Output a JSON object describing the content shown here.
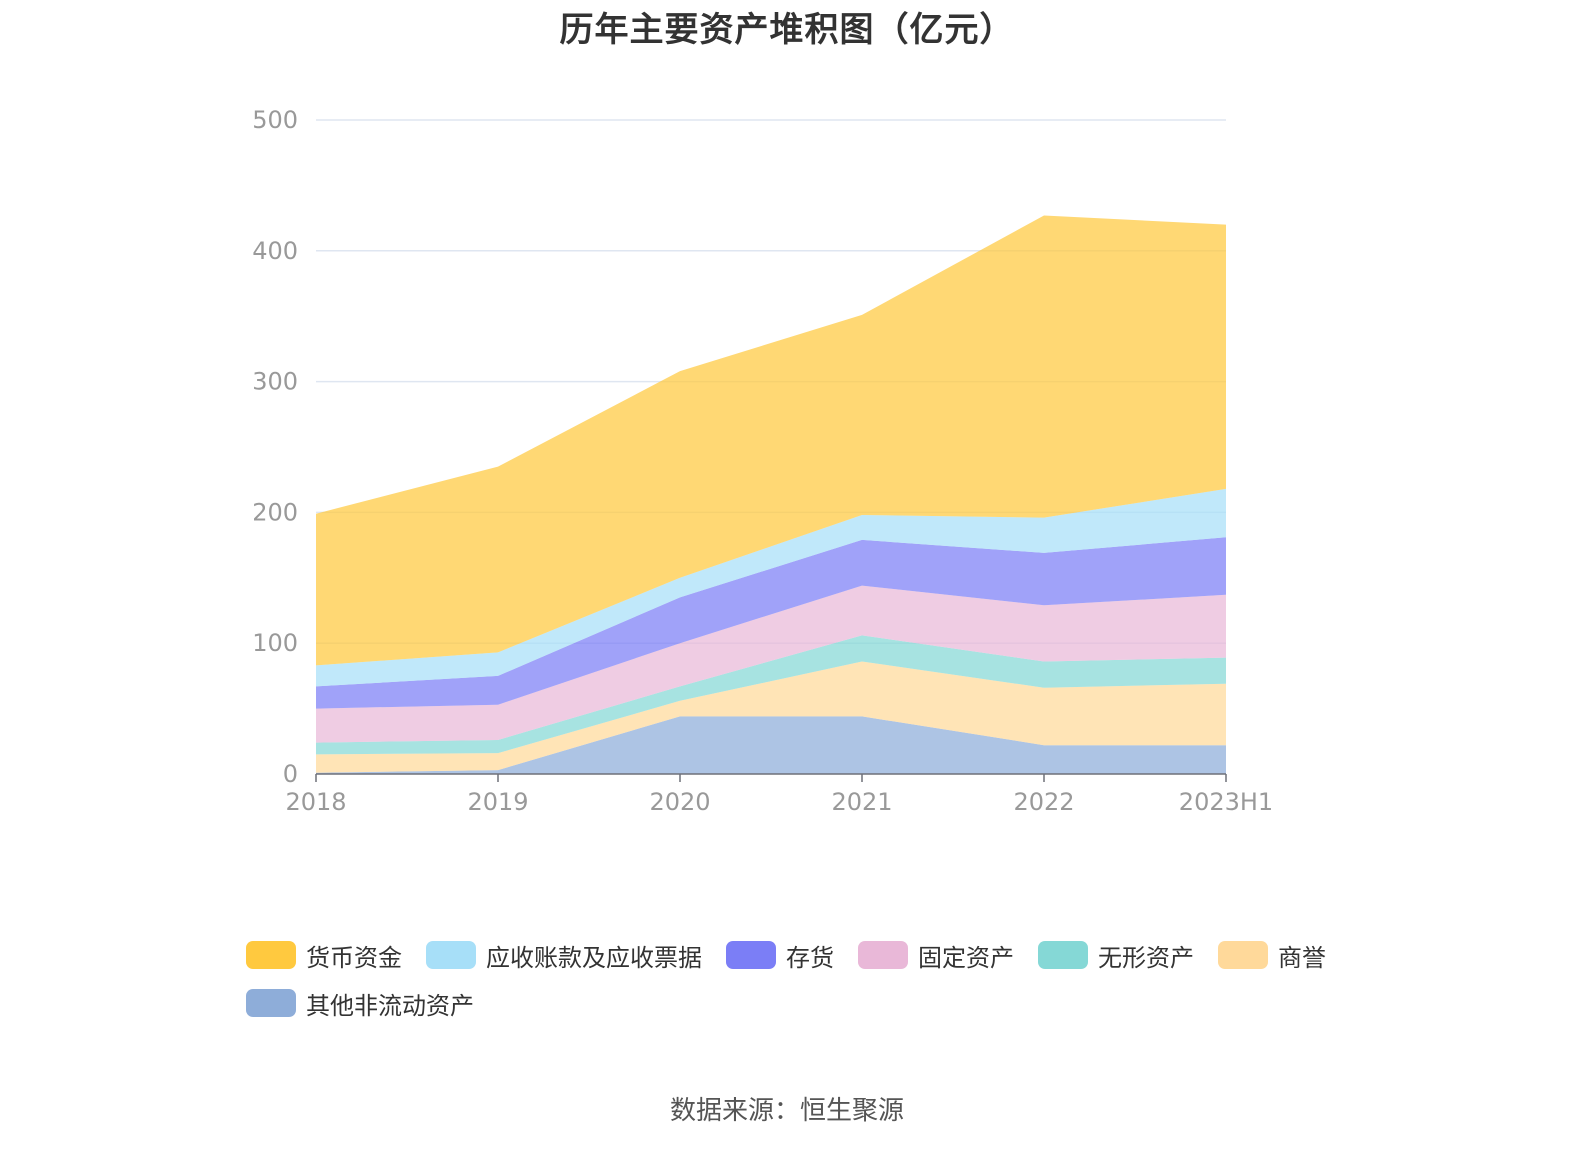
{
  "title": "历年主要资产堆积图（亿元）",
  "source": "数据来源：恒生聚源",
  "chart_data": {
    "type": "area",
    "stacked": true,
    "title": "历年主要资产堆积图（亿元）",
    "categories": [
      "2018",
      "2019",
      "2020",
      "2021",
      "2022",
      "2023H1"
    ],
    "ylim": [
      0,
      500
    ],
    "yticks": [
      "0",
      "100",
      "200",
      "300",
      "400",
      "500"
    ],
    "grid": true,
    "legend_position": "bottom",
    "series": [
      {
        "name": "其他非流动资产",
        "color": "#8eadd9",
        "values": [
          1,
          3,
          44,
          44,
          22,
          22
        ]
      },
      {
        "name": "商誉",
        "color": "#ffd99a",
        "values": [
          14,
          13,
          12,
          42,
          44,
          47
        ]
      },
      {
        "name": "无形资产",
        "color": "#85d8d6",
        "values": [
          9,
          10,
          11,
          20,
          20,
          20
        ]
      },
      {
        "name": "固定资产",
        "color": "#e9b8d8",
        "values": [
          26,
          27,
          33,
          38,
          43,
          48
        ]
      },
      {
        "name": "存货",
        "color": "#7b7ef6",
        "values": [
          17,
          22,
          35,
          35,
          40,
          44
        ]
      },
      {
        "name": "应收账款及应收票据",
        "color": "#a7dff8",
        "values": [
          16,
          18,
          15,
          19,
          27,
          37
        ]
      },
      {
        "name": "货币资金",
        "color": "#ffc93f",
        "values": [
          116,
          142,
          158,
          153,
          231,
          202
        ]
      }
    ]
  },
  "legend": [
    {
      "label": "货币资金",
      "color": "#ffc93f"
    },
    {
      "label": "应收账款及应收票据",
      "color": "#a7dff8"
    },
    {
      "label": "存货",
      "color": "#7b7ef6"
    },
    {
      "label": "固定资产",
      "color": "#e9b8d8"
    },
    {
      "label": "无形资产",
      "color": "#85d8d6"
    },
    {
      "label": "商誉",
      "color": "#ffd99a"
    },
    {
      "label": "其他非流动资产",
      "color": "#8eadd9"
    }
  ]
}
